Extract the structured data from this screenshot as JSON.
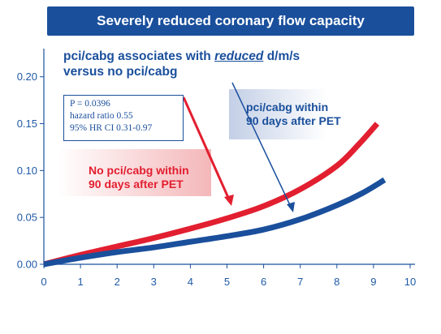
{
  "chart_data": {
    "type": "line",
    "title": "Severely reduced coronary flow capacity",
    "annotation": {
      "line1": "pci/cabg associates with ",
      "emph": "reduced",
      "line1_end": " d/m/s",
      "line2": "versus no pci/cabg"
    },
    "stats_box": [
      "P = 0.0396",
      "hazard ratio 0.55",
      "95% HR CI 0.31-0.97"
    ],
    "xlim": [
      0,
      10
    ],
    "ylim": [
      0,
      0.23
    ],
    "x_ticks": [
      "0",
      "1",
      "2",
      "3",
      "4",
      "5",
      "6",
      "7",
      "8",
      "9",
      "10"
    ],
    "y_ticks": [
      "0.00",
      "0.05",
      "0.10",
      "0.15",
      "0.20"
    ],
    "y_tick_values": [
      0,
      0.05,
      0.1,
      0.15,
      0.2
    ],
    "series": [
      {
        "name_lines": [
          "No pci/cabg within",
          "90 days after PET"
        ],
        "color": "#e21f30",
        "x": [
          0,
          1,
          2,
          3,
          4,
          5,
          6,
          7,
          8,
          8.6,
          9.1
        ],
        "y": [
          0,
          0.01,
          0.019,
          0.028,
          0.038,
          0.049,
          0.062,
          0.08,
          0.105,
          0.128,
          0.15
        ]
      },
      {
        "name_lines": [
          "pci/cabg within",
          "90 days after PET"
        ],
        "color": "#1a4f9c",
        "x": [
          0,
          1,
          2,
          3,
          4,
          5,
          6,
          7,
          8,
          8.7,
          9.3
        ],
        "y": [
          0,
          0.007,
          0.013,
          0.018,
          0.024,
          0.03,
          0.037,
          0.048,
          0.063,
          0.076,
          0.09
        ]
      }
    ]
  }
}
